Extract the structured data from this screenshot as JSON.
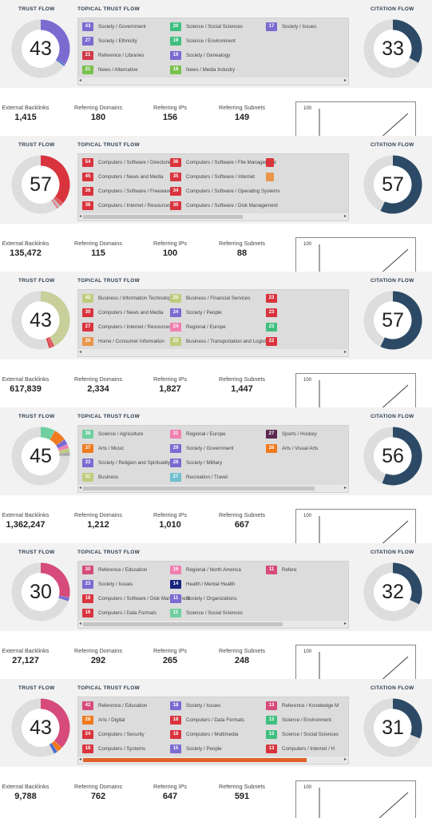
{
  "labels": {
    "trust_flow": "TRUST FLOW",
    "topical_trust_flow": "TOPICAL TRUST FLOW",
    "citation_flow": "CITATION FLOW",
    "external_backlinks": "External Backlinks",
    "referring_domains": "Referring Domains",
    "referring_ips": "Referring IPs",
    "referring_subnets": "Referring Subnets",
    "spark_max": "100",
    "scroll_left": "◂",
    "scroll_right": "▸"
  },
  "colors": {
    "citation_flow": "#2c4a66",
    "ring_bg": "#dddddd"
  },
  "blocks": [
    {
      "trust_flow": "43",
      "citation_flow": "33",
      "cf_fraction": 0.33,
      "tf_segments": [
        {
          "value": 0.34,
          "color": "#7b6bd1"
        },
        {
          "value": 0.01,
          "color": "#4b6fd0"
        }
      ],
      "topics": [
        {
          "value": "43",
          "label": "Society / Government",
          "color": "#7b6bd1",
          "col": 0,
          "row": 0
        },
        {
          "value": "27",
          "label": "Society / Ethnicity",
          "color": "#7b6bd1",
          "col": 0,
          "row": 1
        },
        {
          "value": "21",
          "label": "Reference / Libraries",
          "color": "#d13a49",
          "col": 0,
          "row": 2
        },
        {
          "value": "21",
          "label": "News / Alternative",
          "color": "#79c14d",
          "col": 0,
          "row": 3
        },
        {
          "value": "20",
          "label": "Science / Social Sciences",
          "color": "#3fbf7f",
          "col": 1,
          "row": 0
        },
        {
          "value": "19",
          "label": "Science / Environment",
          "color": "#3fbf7f",
          "col": 1,
          "row": 1
        },
        {
          "value": "19",
          "label": "Society / Genealogy",
          "color": "#7b6bd1",
          "col": 1,
          "row": 2
        },
        {
          "value": "18",
          "label": "News / Media Industry",
          "color": "#79c14d",
          "col": 1,
          "row": 3
        },
        {
          "value": "17",
          "label": "Society / Issues",
          "color": "#7b6bd1",
          "col": 2,
          "row": 0
        }
      ],
      "thumb_width": 0,
      "stats": {
        "external_backlinks": "1,415",
        "referring_domains": "180",
        "referring_ips": "156",
        "referring_subnets": "149"
      }
    },
    {
      "trust_flow": "57",
      "citation_flow": "57",
      "cf_fraction": 0.57,
      "tf_segments": [
        {
          "value": 0.36,
          "color": "#d9343d"
        },
        {
          "value": 0.02,
          "color": "#e05a63"
        },
        {
          "value": 0.01,
          "color": "#bbbbbb"
        },
        {
          "value": 0.01,
          "color": "#e07a82"
        }
      ],
      "topics": [
        {
          "value": "54",
          "label": "Computers / Software / Directories",
          "color": "#d9343d",
          "col": 0,
          "row": 0
        },
        {
          "value": "45",
          "label": "Computers / News and Media",
          "color": "#d9343d",
          "col": 0,
          "row": 1
        },
        {
          "value": "36",
          "label": "Computers / Software / Freeware",
          "color": "#d9343d",
          "col": 0,
          "row": 2
        },
        {
          "value": "36",
          "label": "Computers / Internet / Resources",
          "color": "#d9343d",
          "col": 0,
          "row": 3
        },
        {
          "value": "36",
          "label": "Computers / Software / File Management",
          "color": "#d9343d",
          "col": 1,
          "row": 0
        },
        {
          "value": "35",
          "label": "Computers / Software / Internet",
          "color": "#d9343d",
          "col": 1,
          "row": 1
        },
        {
          "value": "34",
          "label": "Computers / Software / Operating Systems",
          "color": "#d9343d",
          "col": 1,
          "row": 2
        },
        {
          "value": "30",
          "label": "Computers / Software / Disk Management",
          "color": "#d9343d",
          "col": 1,
          "row": 3
        },
        {
          "value": "",
          "label": "",
          "color": "#d9343d",
          "col": 2,
          "row": 0
        },
        {
          "value": "",
          "label": "",
          "color": "#e8964a",
          "col": 2,
          "row": 1
        }
      ],
      "thumb_width": 200,
      "stats": {
        "external_backlinks": "135,472",
        "referring_domains": "115",
        "referring_ips": "100",
        "referring_subnets": "88"
      }
    },
    {
      "trust_flow": "43",
      "citation_flow": "57",
      "cf_fraction": 0.57,
      "tf_segments": [
        {
          "value": 0.42,
          "color": "#c8cf9a"
        },
        {
          "value": 0.02,
          "color": "#e05a63"
        },
        {
          "value": 0.01,
          "color": "#d9343d"
        }
      ],
      "topics": [
        {
          "value": "42",
          "label": "Business / Information Technology",
          "color": "#bfcc7d",
          "col": 0,
          "row": 0
        },
        {
          "value": "30",
          "label": "Computers / News and Media",
          "color": "#d9343d",
          "col": 0,
          "row": 1
        },
        {
          "value": "27",
          "label": "Computers / Internet / Resources",
          "color": "#d9343d",
          "col": 0,
          "row": 2
        },
        {
          "value": "26",
          "label": "Home / Consumer Information",
          "color": "#e8964a",
          "col": 0,
          "row": 3
        },
        {
          "value": "25",
          "label": "Business / Financial Services",
          "color": "#bfcc7d",
          "col": 1,
          "row": 0
        },
        {
          "value": "24",
          "label": "Society / People",
          "color": "#7b6bd1",
          "col": 1,
          "row": 1
        },
        {
          "value": "24",
          "label": "Regional / Europe",
          "color": "#f080b0",
          "col": 1,
          "row": 2
        },
        {
          "value": "23",
          "label": "Business / Transportation and Logistics",
          "color": "#bfcc7d",
          "col": 1,
          "row": 3
        },
        {
          "value": "23",
          "label": "",
          "color": "#d9343d",
          "col": 2,
          "row": 0
        },
        {
          "value": "23",
          "label": "",
          "color": "#d9343d",
          "col": 2,
          "row": 1
        },
        {
          "value": "23",
          "label": "",
          "color": "#3fbf7f",
          "col": 2,
          "row": 2
        },
        {
          "value": "22",
          "label": "",
          "color": "#d9343d",
          "col": 2,
          "row": 3
        }
      ],
      "thumb_width": 0,
      "stats": {
        "external_backlinks": "617,839",
        "referring_domains": "2,334",
        "referring_ips": "1,827",
        "referring_subnets": "1,447"
      }
    },
    {
      "trust_flow": "45",
      "citation_flow": "56",
      "cf_fraction": 0.56,
      "tf_segments": [
        {
          "value": 0.08,
          "color": "#6fcfa0"
        },
        {
          "value": 0.07,
          "color": "#f07a1e"
        },
        {
          "value": 0.03,
          "color": "#7b6bd1"
        },
        {
          "value": 0.02,
          "color": "#f080b0"
        },
        {
          "value": 0.02,
          "color": "#bfcc7d"
        },
        {
          "value": 0.02,
          "color": "#aaaaaa"
        }
      ],
      "topics": [
        {
          "value": "38",
          "label": "Science / Agriculture",
          "color": "#6fcfa0",
          "col": 0,
          "row": 0
        },
        {
          "value": "37",
          "label": "Arts / Music",
          "color": "#f07a1e",
          "col": 0,
          "row": 1
        },
        {
          "value": "33",
          "label": "Society / Religion and Spirituality",
          "color": "#7b6bd1",
          "col": 0,
          "row": 2
        },
        {
          "value": "31",
          "label": "Business",
          "color": "#bfcc7d",
          "col": 0,
          "row": 3
        },
        {
          "value": "31",
          "label": "Regional / Europe",
          "color": "#f080b0",
          "col": 1,
          "row": 0
        },
        {
          "value": "29",
          "label": "Society / Government",
          "color": "#7b6bd1",
          "col": 1,
          "row": 1
        },
        {
          "value": "28",
          "label": "Society / Military",
          "color": "#7b6bd1",
          "col": 1,
          "row": 2
        },
        {
          "value": "27",
          "label": "Recreation / Travel",
          "color": "#6fbfcf",
          "col": 1,
          "row": 3
        },
        {
          "value": "27",
          "label": "Sports / Hockey",
          "color": "#5a2a50",
          "col": 2,
          "row": 0
        },
        {
          "value": "26",
          "label": "Arts / Visual Arts",
          "color": "#f07a1e",
          "col": 2,
          "row": 1
        }
      ],
      "thumb_width": 290,
      "stats": {
        "external_backlinks": "1,362,247",
        "referring_domains": "1,212",
        "referring_ips": "1,010",
        "referring_subnets": "667"
      }
    },
    {
      "trust_flow": "30",
      "citation_flow": "32",
      "cf_fraction": 0.32,
      "tf_segments": [
        {
          "value": 0.28,
          "color": "#d64a7c"
        },
        {
          "value": 0.02,
          "color": "#7b6bd1"
        }
      ],
      "topics": [
        {
          "value": "30",
          "label": "Reference / Education",
          "color": "#d64a7c",
          "col": 0,
          "row": 0
        },
        {
          "value": "23",
          "label": "Society / Issues",
          "color": "#7b6bd1",
          "col": 0,
          "row": 1
        },
        {
          "value": "18",
          "label": "Computers / Software / Disk Management",
          "color": "#d9343d",
          "col": 0,
          "row": 2
        },
        {
          "value": "16",
          "label": "Computers / Data Formats",
          "color": "#d9343d",
          "col": 0,
          "row": 3
        },
        {
          "value": "16",
          "label": "Regional / North America",
          "color": "#f080b0",
          "col": 1,
          "row": 0
        },
        {
          "value": "14",
          "label": "Health / Mental Health",
          "color": "#1a237e",
          "col": 1,
          "row": 1
        },
        {
          "value": "11",
          "label": "Society / Organizations",
          "color": "#7b6bd1",
          "col": 1,
          "row": 2
        },
        {
          "value": "11",
          "label": "Science / Social Sciences",
          "color": "#6fcfa0",
          "col": 1,
          "row": 3
        },
        {
          "value": "11",
          "label": "Refere",
          "color": "#d64a7c",
          "col": 2,
          "row": 0
        }
      ],
      "thumb_width": 250,
      "stats": {
        "external_backlinks": "27,127",
        "referring_domains": "292",
        "referring_ips": "265",
        "referring_subnets": "248"
      }
    },
    {
      "trust_flow": "43",
      "citation_flow": "31",
      "cf_fraction": 0.31,
      "tf_segments": [
        {
          "value": 0.37,
          "color": "#d64a7c"
        },
        {
          "value": 0.03,
          "color": "#f07a1e"
        },
        {
          "value": 0.02,
          "color": "#4b6fd0"
        }
      ],
      "topics": [
        {
          "value": "42",
          "label": "Reference / Education",
          "color": "#d64a7c",
          "col": 0,
          "row": 0
        },
        {
          "value": "28",
          "label": "Arts / Digital",
          "color": "#f07a1e",
          "col": 0,
          "row": 1
        },
        {
          "value": "24",
          "label": "Computers / Security",
          "color": "#d9343d",
          "col": 0,
          "row": 2
        },
        {
          "value": "18",
          "label": "Computers / Systems",
          "color": "#d9343d",
          "col": 0,
          "row": 3
        },
        {
          "value": "18",
          "label": "Society / Issues",
          "color": "#7b6bd1",
          "col": 1,
          "row": 0
        },
        {
          "value": "18",
          "label": "Computers / Data Formats",
          "color": "#d9343d",
          "col": 1,
          "row": 1
        },
        {
          "value": "18",
          "label": "Computers / Multimedia",
          "color": "#d9343d",
          "col": 1,
          "row": 2
        },
        {
          "value": "15",
          "label": "Society / People",
          "color": "#7b6bd1",
          "col": 1,
          "row": 3
        },
        {
          "value": "13",
          "label": "Reference / Knowledge M",
          "color": "#d64a7c",
          "col": 2,
          "row": 0
        },
        {
          "value": "13",
          "label": "Science / Environment",
          "color": "#3fbf7f",
          "col": 2,
          "row": 1
        },
        {
          "value": "13",
          "label": "Science / Social Sciences",
          "color": "#3fbf7f",
          "col": 2,
          "row": 2
        },
        {
          "value": "13",
          "label": "Computers / Internet / H",
          "color": "#d9343d",
          "col": 2,
          "row": 3
        }
      ],
      "thumb_width": 280,
      "thumb_color": "#e0602a",
      "stats": {
        "external_backlinks": "9,788",
        "referring_domains": "762",
        "referring_ips": "647",
        "referring_subnets": "591"
      }
    }
  ]
}
